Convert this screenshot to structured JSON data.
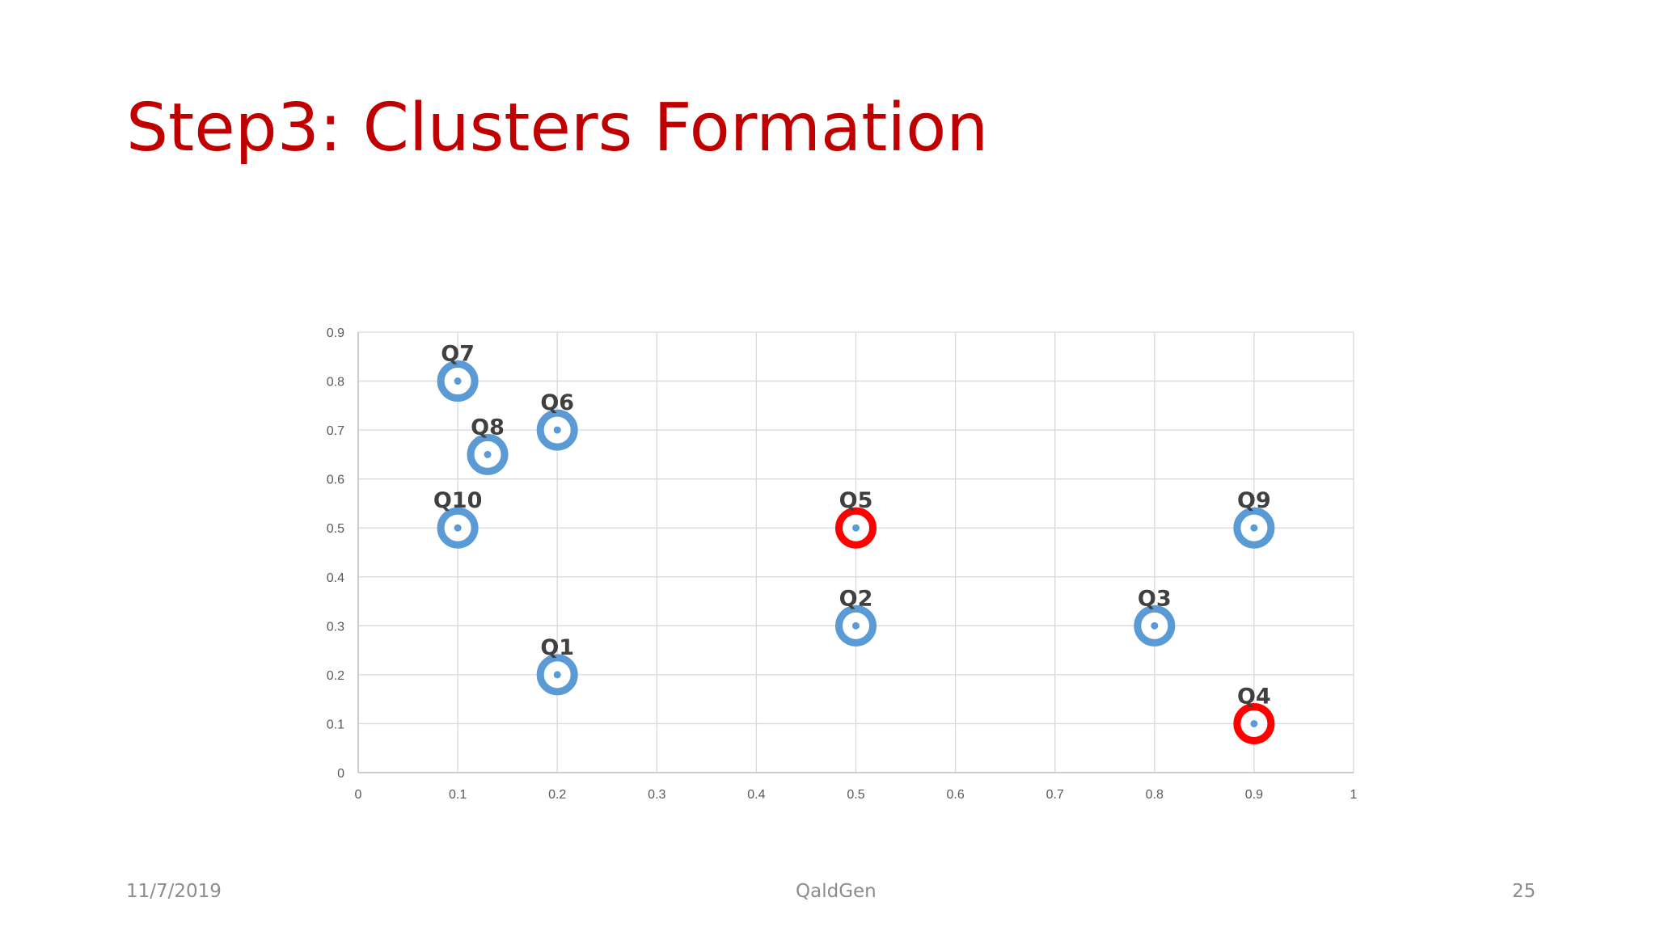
{
  "slide": {
    "title": "Step3: Clusters Formation",
    "footer_date": "11/7/2019",
    "footer_center": "QaldGen",
    "page_number": "25"
  },
  "colors": {
    "title": "#c00000",
    "normal_point": "#5b9bd5",
    "highlight_point": "#ff0000",
    "label": "#404040",
    "grid": "#d9d9d9"
  },
  "chart_data": {
    "type": "scatter",
    "title": "",
    "xlabel": "",
    "ylabel": "",
    "xlim": [
      0,
      1
    ],
    "ylim": [
      0,
      0.9
    ],
    "x_ticks": [
      "0",
      "0.1",
      "0.2",
      "0.3",
      "0.4",
      "0.5",
      "0.6",
      "0.7",
      "0.8",
      "0.9",
      "1"
    ],
    "y_ticks": [
      "0",
      "0.1",
      "0.2",
      "0.3",
      "0.4",
      "0.5",
      "0.6",
      "0.7",
      "0.8",
      "0.9"
    ],
    "grid": true,
    "points": [
      {
        "label": "Q1",
        "x": 0.2,
        "y": 0.2,
        "highlight": false
      },
      {
        "label": "Q2",
        "x": 0.5,
        "y": 0.3,
        "highlight": false
      },
      {
        "label": "Q3",
        "x": 0.8,
        "y": 0.3,
        "highlight": false
      },
      {
        "label": "Q4",
        "x": 0.9,
        "y": 0.1,
        "highlight": true
      },
      {
        "label": "Q5",
        "x": 0.5,
        "y": 0.5,
        "highlight": true
      },
      {
        "label": "Q6",
        "x": 0.2,
        "y": 0.7,
        "highlight": false
      },
      {
        "label": "Q7",
        "x": 0.1,
        "y": 0.8,
        "highlight": false
      },
      {
        "label": "Q8",
        "x": 0.13,
        "y": 0.65,
        "highlight": false
      },
      {
        "label": "Q9",
        "x": 0.9,
        "y": 0.5,
        "highlight": false
      },
      {
        "label": "Q10",
        "x": 0.1,
        "y": 0.5,
        "highlight": false
      }
    ]
  }
}
